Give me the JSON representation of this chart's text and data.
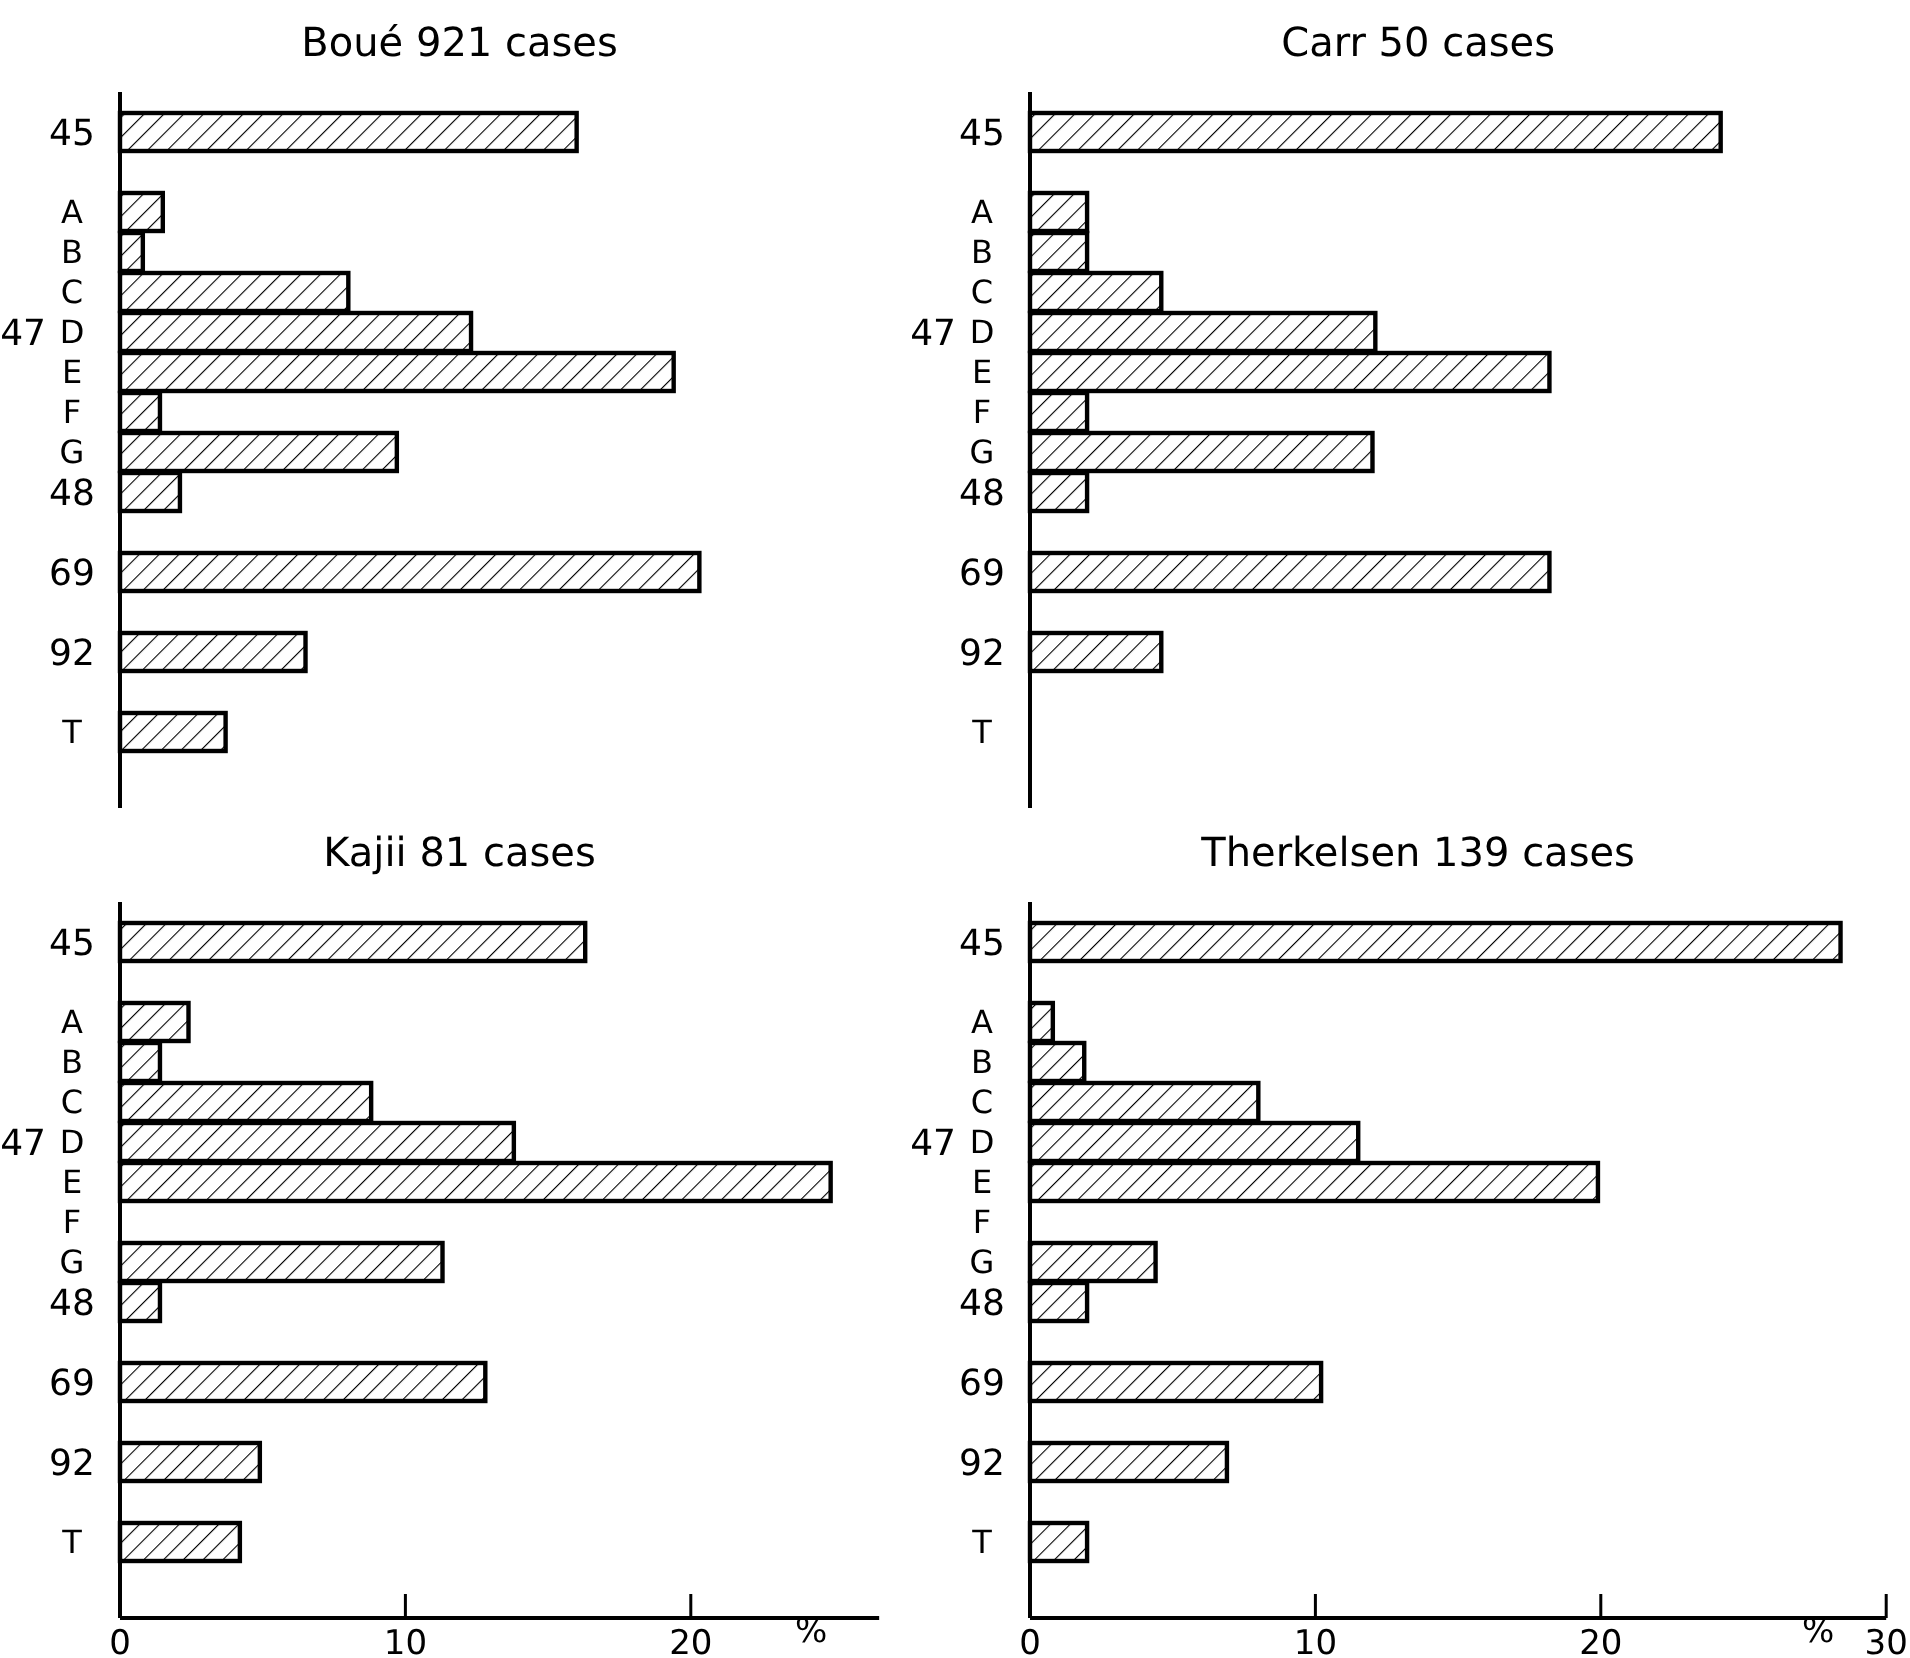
{
  "chart_data": [
    {
      "type": "bar",
      "orientation": "horizontal",
      "title": "Boué  921 cases",
      "categories": [
        "45",
        null,
        "A",
        "B",
        "C",
        "D",
        "E",
        "F",
        "G",
        "48",
        null,
        "69",
        null,
        "92",
        null,
        "T"
      ],
      "values": [
        16.0,
        null,
        1.5,
        0.8,
        8.0,
        12.3,
        19.4,
        1.4,
        9.7,
        2.1,
        null,
        20.3,
        null,
        6.5,
        null,
        3.7
      ],
      "color": "#000000",
      "xticks": [
        0,
        10,
        20
      ],
      "tick_labels": "y",
      "annotations": [
        "47"
      ]
    },
    {
      "type": "bar",
      "orientation": "horizontal",
      "title": "Carr   50 cases",
      "categories": [
        "45",
        null,
        "A",
        "B",
        "C",
        "D",
        "E",
        "F",
        "G",
        "48",
        null,
        "69",
        null,
        "92",
        null,
        "T"
      ],
      "values": [
        24.2,
        null,
        2.0,
        2.0,
        4.6,
        12.1,
        18.2,
        2.0,
        12.0,
        2.0,
        null,
        18.2,
        null,
        4.6,
        null,
        null
      ],
      "color": "#000000",
      "xlim": [
        0,
        30
      ],
      "xticks": [
        0,
        10,
        20,
        30
      ],
      "tick_labels": "y",
      "annotations": [
        "47"
      ]
    },
    {
      "type": "bar",
      "orientation": "horizontal",
      "title": "Kajii  81 cases",
      "categories": [
        "45",
        null,
        "A",
        "B",
        "C",
        "D",
        "E",
        "F",
        "G",
        "48",
        null,
        "69",
        null,
        "92",
        null,
        "T"
      ],
      "values": [
        16.3,
        null,
        2.4,
        1.4,
        8.8,
        13.8,
        24.9,
        null,
        11.3,
        1.4,
        null,
        12.8,
        null,
        4.9,
        null,
        4.2
      ],
      "color": "#000000",
      "xlim": [
        0,
        26.6
      ],
      "xticks": [
        0,
        10,
        20
      ],
      "xlabel": "%",
      "annotations": [
        "47"
      ]
    },
    {
      "type": "bar",
      "orientation": "horizontal",
      "title": "Therkelsen  139 cases",
      "categories": [
        "45",
        null,
        "A",
        "B",
        "C",
        "D",
        "E",
        "F",
        "G",
        "48",
        null,
        "69",
        null,
        "92",
        null,
        "T"
      ],
      "values": [
        28.4,
        null,
        0.8,
        1.9,
        8.0,
        11.5,
        19.9,
        null,
        4.4,
        2.0,
        null,
        10.2,
        null,
        6.9,
        null,
        2.0
      ],
      "color": "#000000",
      "xlim": [
        0,
        30
      ],
      "xticks": [
        0,
        10,
        20,
        30
      ],
      "xlabel": "%",
      "annotations": [
        "47"
      ]
    }
  ]
}
